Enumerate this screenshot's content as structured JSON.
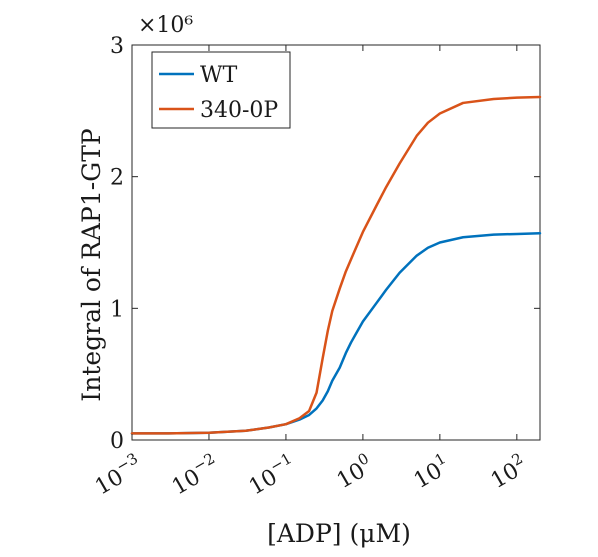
{
  "chart_data": {
    "type": "line",
    "xlabel": "[ADP] (μM)",
    "ylabel": "Integral of RAP1-GTP",
    "x_scale": "log",
    "xlim": [
      0.001,
      200
    ],
    "ylim": [
      0,
      3000000
    ],
    "exponent_label": "×10⁶",
    "x_ticks": [
      {
        "value": 0.001,
        "base": "10",
        "exp": "−3"
      },
      {
        "value": 0.01,
        "base": "10",
        "exp": "−2"
      },
      {
        "value": 0.1,
        "base": "10",
        "exp": "−1"
      },
      {
        "value": 1,
        "base": "10",
        "exp": "0"
      },
      {
        "value": 10,
        "base": "10",
        "exp": "1"
      },
      {
        "value": 100,
        "base": "10",
        "exp": "2"
      }
    ],
    "y_ticks": [
      {
        "value": 0,
        "label": "0"
      },
      {
        "value": 1000000,
        "label": "1"
      },
      {
        "value": 2000000,
        "label": "2"
      },
      {
        "value": 3000000,
        "label": "3"
      }
    ],
    "grid": false,
    "legend_position": "top-left",
    "series": [
      {
        "name": "WT",
        "color": "#0072BD",
        "x": [
          0.001,
          0.003,
          0.01,
          0.03,
          0.06,
          0.1,
          0.15,
          0.2,
          0.25,
          0.3,
          0.35,
          0.4,
          0.5,
          0.6,
          0.7,
          0.8,
          1,
          1.5,
          2,
          3,
          5,
          7,
          10,
          20,
          50,
          100,
          200
        ],
        "y": [
          50000,
          50000,
          55000,
          70000,
          95000,
          120000,
          155000,
          190000,
          240000,
          300000,
          370000,
          450000,
          550000,
          660000,
          740000,
          800000,
          900000,
          1040000,
          1140000,
          1270000,
          1400000,
          1460000,
          1500000,
          1540000,
          1560000,
          1565000,
          1570000
        ]
      },
      {
        "name": "340-0P",
        "color": "#D95319",
        "x": [
          0.001,
          0.003,
          0.01,
          0.03,
          0.06,
          0.1,
          0.15,
          0.2,
          0.25,
          0.3,
          0.35,
          0.4,
          0.5,
          0.6,
          0.8,
          1,
          1.5,
          2,
          3,
          5,
          7,
          10,
          20,
          50,
          100,
          200
        ],
        "y": [
          50000,
          50000,
          55000,
          70000,
          95000,
          120000,
          165000,
          220000,
          360000,
          620000,
          830000,
          980000,
          1150000,
          1280000,
          1450000,
          1580000,
          1780000,
          1920000,
          2100000,
          2310000,
          2410000,
          2480000,
          2560000,
          2590000,
          2600000,
          2605000
        ]
      }
    ]
  }
}
